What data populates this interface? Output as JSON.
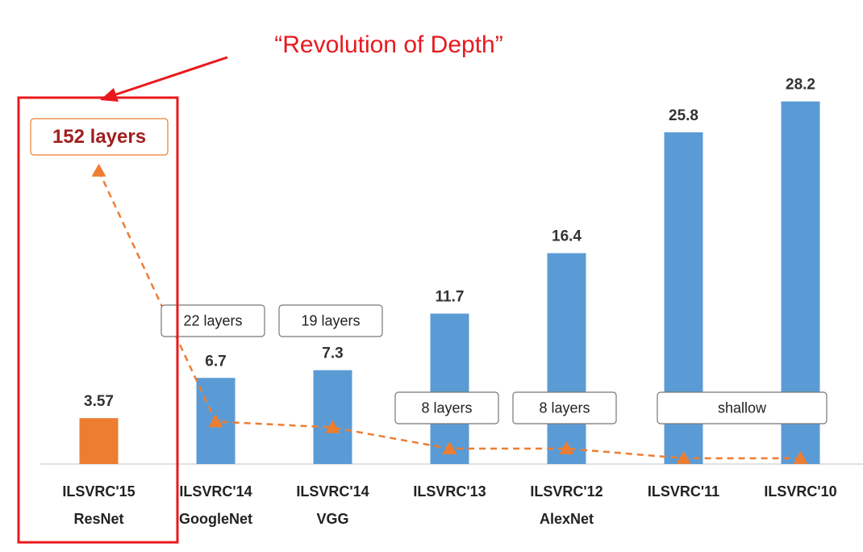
{
  "chart_data": {
    "type": "bar",
    "annotation": "“Revolution of Depth”",
    "categories": [
      [
        "ILSVRC'15",
        "ResNet"
      ],
      [
        "ILSVRC'14",
        "GoogleNet"
      ],
      [
        "ILSVRC'14",
        "VGG"
      ],
      [
        "ILSVRC'13"
      ],
      [
        "ILSVRC'12",
        "AlexNet"
      ],
      [
        "ILSVRC'11"
      ],
      [
        "ILSVRC'10"
      ]
    ],
    "ylim": [
      0,
      30
    ],
    "y2lim": [
      0,
      200
    ],
    "series": [
      {
        "type": "bar",
        "values": [
          3.57,
          6.7,
          7.3,
          11.7,
          16.4,
          25.8,
          28.2
        ],
        "colors": [
          "#ed7d31",
          "#5b9bd5",
          "#5b9bd5",
          "#5b9bd5",
          "#5b9bd5",
          "#5b9bd5",
          "#5b9bd5"
        ]
      },
      {
        "type": "line",
        "axis": "y2",
        "color": "#ed7d31",
        "values": [
          152,
          22,
          19,
          8,
          8,
          3,
          3
        ],
        "value_labels": [
          "152 layers",
          "22 layers",
          "19 layers",
          "8 layers",
          "8 layers",
          "shallow",
          null
        ]
      }
    ]
  }
}
